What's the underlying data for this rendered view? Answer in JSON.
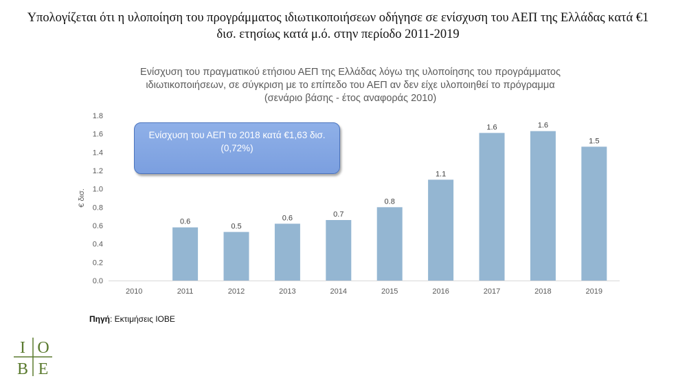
{
  "headline": {
    "line1": "Υπολογίζεται ότι η υλοποίηση του προγράμματος ιδιωτικοποιήσεων οδήγησε σε ενίσχυση του ΑΕΠ της Ελλάδας κατά €1",
    "line2": "δισ. ετησίως κατά μ.ό. στην περίοδο 2011-2019"
  },
  "callout": {
    "line1": "Ενίσχυση του ΑΕΠ το 2018 κατά €1,63 δισ.",
    "line2": "(0,72%)"
  },
  "source": {
    "label": "Πηγή",
    "text": ": Εκτιμήσεις ΙΟΒΕ"
  },
  "logo": {
    "letters": [
      "I",
      "O",
      "B",
      "E"
    ],
    "color": "#5a7a2e"
  },
  "colors": {
    "bar": "#94b6d2",
    "axis": "#d9d9d9",
    "text": "#595959"
  },
  "chart_data": {
    "type": "bar",
    "title_lines": [
      "Ενίσχυση του πραγματικού ετήσιου ΑΕΠ της Ελλάδας λόγω της υλοποίησης του προγράμματος",
      "ιδιωτικοποιήσεων, σε σύγκριση με το επίπεδο του ΑΕΠ αν δεν είχε υλοποιηθεί το πρόγραμμα",
      "(σενάριο βάσης - έτος αναφοράς 2010)"
    ],
    "ylabel": "€ δισ.",
    "categories": [
      "2010",
      "2011",
      "2012",
      "2013",
      "2014",
      "2015",
      "2016",
      "2017",
      "2018",
      "2019"
    ],
    "values": [
      0,
      0.58,
      0.53,
      0.62,
      0.66,
      0.8,
      1.1,
      1.61,
      1.63,
      1.46
    ],
    "data_labels": [
      "",
      "0.6",
      "0.5",
      "0.6",
      "0.7",
      "0.8",
      "1.1",
      "1.6",
      "1.6",
      "1.5"
    ],
    "yticks": [
      "0.0",
      "0.2",
      "0.4",
      "0.6",
      "0.8",
      "1.0",
      "1.2",
      "1.4",
      "1.6",
      "1.8"
    ],
    "ylim": [
      0,
      1.8
    ],
    "grid": false,
    "legend": "none"
  }
}
